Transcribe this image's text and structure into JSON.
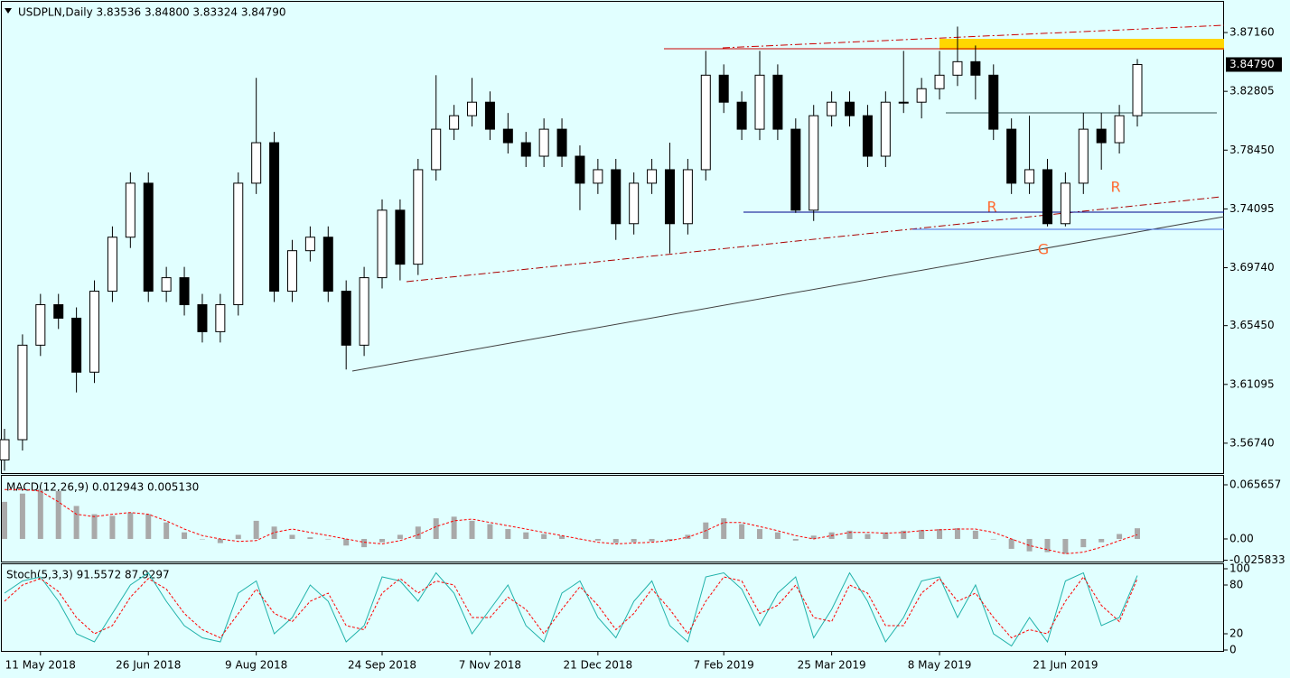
{
  "chart_data": [
    {
      "type": "candlestick",
      "title": "USDPLN,Daily  3.83536 3.84800 3.83324 3.84790",
      "categories": [
        null,
        null,
        "11 May 2018",
        null,
        null,
        null,
        null,
        null,
        "26 Jun 2018",
        null,
        null,
        null,
        null,
        null,
        "9 Aug 2018",
        null,
        null,
        null,
        null,
        null,
        null,
        "24 Sep 2018",
        null,
        null,
        null,
        null,
        null,
        "7 Nov 2018",
        null,
        null,
        null,
        null,
        null,
        "21 Dec 2018",
        null,
        null,
        null,
        null,
        null,
        null,
        "7 Feb 2019",
        null,
        null,
        null,
        null,
        null,
        "25 Mar 2019",
        null,
        null,
        null,
        null,
        null,
        "8 May 2019",
        null,
        null,
        null,
        null,
        null,
        null,
        "21 Jun 2019",
        null,
        null,
        null,
        null
      ],
      "open": [
        3.555,
        3.57,
        3.64,
        3.67,
        3.66,
        3.62,
        3.68,
        3.72,
        3.76,
        3.68,
        3.69,
        3.67,
        3.65,
        3.67,
        3.76,
        3.79,
        3.68,
        3.71,
        3.72,
        3.68,
        3.64,
        3.69,
        3.74,
        3.7,
        3.77,
        3.8,
        3.81,
        3.82,
        3.8,
        3.79,
        3.78,
        3.8,
        3.78,
        3.76,
        3.77,
        3.73,
        3.76,
        3.77,
        3.73,
        3.77,
        3.84,
        3.82,
        3.8,
        3.84,
        3.8,
        3.74,
        3.81,
        3.82,
        3.81,
        3.78,
        3.82,
        3.82,
        3.83,
        3.84,
        3.85,
        3.84,
        3.8,
        3.76,
        3.77,
        3.73,
        3.76,
        3.8,
        3.79,
        3.81
      ],
      "high": [
        3.578,
        3.648,
        3.678,
        3.678,
        3.668,
        3.688,
        3.728,
        3.768,
        3.768,
        3.698,
        3.698,
        3.678,
        3.678,
        3.768,
        3.838,
        3.798,
        3.718,
        3.728,
        3.728,
        3.688,
        3.698,
        3.748,
        3.748,
        3.778,
        3.84,
        3.818,
        3.838,
        3.828,
        3.812,
        3.798,
        3.808,
        3.808,
        3.788,
        3.778,
        3.778,
        3.768,
        3.778,
        3.79,
        3.778,
        3.858,
        3.848,
        3.828,
        3.858,
        3.848,
        3.808,
        3.818,
        3.828,
        3.828,
        3.818,
        3.828,
        3.858,
        3.838,
        3.858,
        3.876,
        3.862,
        3.848,
        3.808,
        3.81,
        3.778,
        3.768,
        3.812,
        3.812,
        3.818,
        3.852
      ],
      "low": [
        3.547,
        3.562,
        3.632,
        3.652,
        3.605,
        3.612,
        3.672,
        3.712,
        3.672,
        3.672,
        3.662,
        3.642,
        3.642,
        3.662,
        3.752,
        3.672,
        3.672,
        3.702,
        3.672,
        3.622,
        3.632,
        3.682,
        3.688,
        3.692,
        3.762,
        3.792,
        3.802,
        3.792,
        3.782,
        3.772,
        3.772,
        3.772,
        3.74,
        3.752,
        3.718,
        3.722,
        3.752,
        3.708,
        3.722,
        3.762,
        3.812,
        3.792,
        3.792,
        3.792,
        3.738,
        3.732,
        3.802,
        3.802,
        3.772,
        3.772,
        3.812,
        3.808,
        3.822,
        3.832,
        3.822,
        3.792,
        3.752,
        3.752,
        3.728,
        3.728,
        3.752,
        3.77,
        3.782,
        3.802
      ],
      "close": [
        3.57,
        3.64,
        3.67,
        3.66,
        3.62,
        3.68,
        3.72,
        3.76,
        3.68,
        3.69,
        3.67,
        3.65,
        3.67,
        3.76,
        3.79,
        3.68,
        3.71,
        3.72,
        3.68,
        3.64,
        3.69,
        3.74,
        3.7,
        3.77,
        3.8,
        3.81,
        3.82,
        3.8,
        3.79,
        3.78,
        3.8,
        3.78,
        3.76,
        3.77,
        3.73,
        3.76,
        3.77,
        3.73,
        3.77,
        3.84,
        3.82,
        3.8,
        3.84,
        3.8,
        3.74,
        3.81,
        3.82,
        3.81,
        3.78,
        3.82,
        3.82,
        3.83,
        3.84,
        3.85,
        3.84,
        3.8,
        3.76,
        3.77,
        3.73,
        3.76,
        3.8,
        3.79,
        3.81,
        3.8479
      ],
      "ylim": [
        3.5446,
        3.8937
      ],
      "yticks": [
        {
          "value": 3.8716,
          "label": "3.87160"
        },
        3.82805,
        {
          "value": 3.7845,
          "label": "3.78450"
        },
        3.74095,
        {
          "value": 3.6974,
          "label": "3.69740"
        },
        {
          "value": 3.6545,
          "label": "3.65450"
        },
        3.61095,
        {
          "value": 3.5674,
          "label": "3.56740"
        }
      ],
      "current_price": {
        "value": 3.8479,
        "label": "3.84790"
      },
      "annotations": [
        "R",
        "G",
        "R"
      ],
      "background": "#e1ffff"
    },
    {
      "type": "macd",
      "title": "MACD(12,26,9) 0.012943 0.005130",
      "histogram": [
        0.045,
        0.055,
        0.06,
        0.058,
        0.04,
        0.03,
        0.028,
        0.032,
        0.03,
        0.02,
        0.008,
        0,
        -0.005,
        0.005,
        0.022,
        0.015,
        0.005,
        0.002,
        0,
        -0.008,
        -0.01,
        -0.004,
        0.005,
        0.015,
        0.025,
        0.027,
        0.022,
        0.018,
        0.012,
        0.008,
        0.006,
        0.004,
        0,
        -0.002,
        -0.005,
        -0.004,
        -0.003,
        -0.002,
        0.005,
        0.02,
        0.025,
        0.018,
        0.012,
        0.008,
        -0.002,
        0.004,
        0.008,
        0.01,
        0.006,
        0.008,
        0.01,
        0.011,
        0.012,
        0.013,
        0.01,
        0,
        -0.012,
        -0.015,
        -0.016,
        -0.018,
        -0.01,
        -0.004,
        0.006,
        0.012943
      ],
      "signal": [
        0.06,
        0.06,
        0.058,
        0.045,
        0.03,
        0.027,
        0.03,
        0.032,
        0.03,
        0.022,
        0.012,
        0.004,
        0,
        -0.003,
        -0.002,
        0.008,
        0.012,
        0.008,
        0.004,
        0,
        -0.004,
        -0.006,
        -0.002,
        0.005,
        0.015,
        0.022,
        0.024,
        0.02,
        0.016,
        0.012,
        0.008,
        0.004,
        0,
        -0.004,
        -0.006,
        -0.005,
        -0.004,
        -0.002,
        0.002,
        0.01,
        0.02,
        0.02,
        0.015,
        0.01,
        0.004,
        0,
        0.004,
        0.008,
        0.008,
        0.007,
        0.008,
        0.01,
        0.011,
        0.012,
        0.012,
        0.008,
        0,
        -0.008,
        -0.013,
        -0.018,
        -0.016,
        -0.01,
        -0.002,
        0.00513
      ],
      "histogram_color": "#a9a9a9",
      "signal_color": "#ff0000",
      "ylim": [
        -0.0274,
        0.0766
      ],
      "yticks": [
        0.065657,
        {
          "value": 0,
          "label": "0.00"
        },
        -0.025833
      ]
    },
    {
      "type": "stochastic",
      "title": "Stoch(5,3,3) 91.5572 87.9297",
      "main": [
        70,
        85,
        90,
        60,
        20,
        10,
        45,
        80,
        95,
        60,
        30,
        15,
        10,
        70,
        85,
        20,
        40,
        80,
        60,
        10,
        30,
        90,
        85,
        60,
        95,
        70,
        20,
        50,
        80,
        30,
        10,
        70,
        85,
        40,
        15,
        60,
        85,
        30,
        10,
        90,
        95,
        75,
        30,
        70,
        90,
        15,
        50,
        95,
        60,
        10,
        40,
        85,
        90,
        40,
        80,
        20,
        5,
        40,
        10,
        85,
        95,
        30,
        40,
        91.5572
      ],
      "signal": [
        60,
        80,
        88,
        72,
        40,
        20,
        30,
        65,
        88,
        75,
        45,
        25,
        15,
        45,
        75,
        45,
        35,
        60,
        70,
        30,
        25,
        70,
        88,
        70,
        85,
        80,
        40,
        40,
        65,
        50,
        20,
        50,
        78,
        55,
        25,
        45,
        75,
        50,
        20,
        60,
        90,
        85,
        45,
        55,
        80,
        40,
        35,
        80,
        70,
        30,
        30,
        70,
        88,
        60,
        70,
        40,
        15,
        25,
        20,
        60,
        90,
        55,
        35,
        87.9297
      ],
      "main_color": "#20b2aa",
      "signal_color": "#ff0000",
      "ylim": [
        0,
        100
      ],
      "yticks": [
        100,
        80,
        20,
        0
      ]
    }
  ]
}
